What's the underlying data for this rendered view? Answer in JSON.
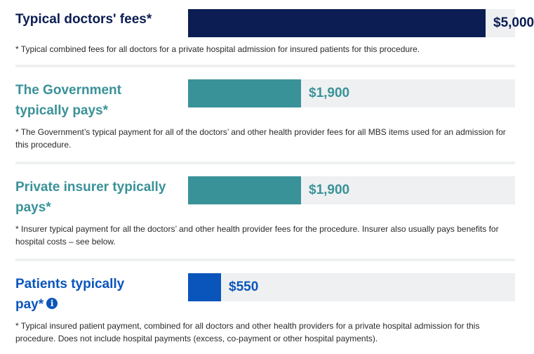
{
  "chart_data": {
    "type": "bar",
    "orientation": "horizontal",
    "categories": [
      "Typical doctors' fees*",
      "The Government typically pays*",
      "Private insurer typically pays*",
      "Patients typically pay*"
    ],
    "values": [
      5000,
      1900,
      1900,
      550
    ],
    "value_labels": [
      "$5,000",
      "$1,900",
      "$1,900",
      "$550"
    ],
    "xlim": [
      0,
      5500
    ],
    "grid": false,
    "legend": "none",
    "colors": [
      "#0b1d52",
      "#3a9299",
      "#3a9299",
      "#0a55bb"
    ]
  },
  "rows": [
    {
      "label": "Typical doctors' fees*",
      "note": "* Typical combined fees for all doctors for a private hospital admission for insured patients for this procedure."
    },
    {
      "label": "The Government typically pays*",
      "note": "* The Government’s typical payment for all of the doctors’ and other health provider fees for all MBS items used for an admission for this procedure."
    },
    {
      "label": "Private insurer typically pays*",
      "note": "* Insurer typical payment for all the doctors’ and other health provider fees for the procedure. Insurer also usually pays benefits for hospital costs – see below."
    },
    {
      "label": "Patients typically pay*",
      "info_icon": "info-icon",
      "info_glyph": "i",
      "note": "* Typical insured patient payment, combined for all doctors and other health providers for a private hospital admission for this procedure. Does not include hospital payments (excess, co-payment or other hospital payments)."
    }
  ]
}
